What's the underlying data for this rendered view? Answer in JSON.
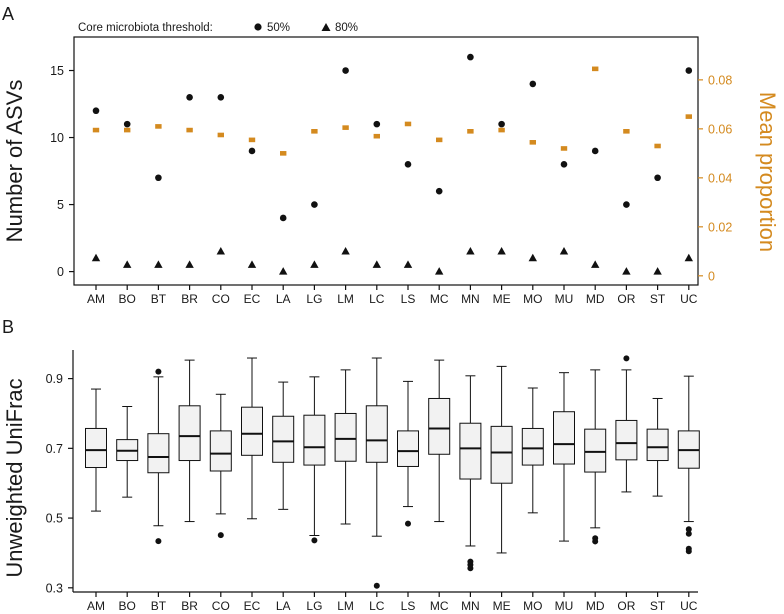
{
  "chart_data": [
    {
      "panel": "A",
      "type": "scatter",
      "legend": {
        "title": "Core microbiota threshold:",
        "entries": [
          {
            "symbol": "circle",
            "label": "50%"
          },
          {
            "symbol": "triangle",
            "label": "80%"
          }
        ]
      },
      "categories": [
        "AM",
        "BO",
        "BT",
        "BR",
        "CO",
        "EC",
        "LA",
        "LG",
        "LM",
        "LC",
        "LS",
        "MC",
        "MN",
        "ME",
        "MO",
        "MU",
        "MD",
        "OR",
        "ST",
        "UC"
      ],
      "ylabel": "Number of ASVs",
      "ylim": [
        -1,
        17.5
      ],
      "yticks": [
        "0",
        "5",
        "10",
        "15"
      ],
      "y2label": "Mean proportion",
      "y2lim": [
        -0.00375,
        0.0975
      ],
      "y2ticks": [
        "0",
        "0.02",
        "0.04",
        "0.06",
        "0.08"
      ],
      "series": [
        {
          "name": "50%",
          "marker": "circle",
          "axis": "left",
          "values": [
            12,
            11,
            7,
            13,
            13,
            9,
            4,
            5,
            15,
            11,
            8,
            6,
            16,
            11,
            14,
            8,
            9,
            5,
            7,
            15
          ]
        },
        {
          "name": "80%",
          "marker": "triangle",
          "axis": "left",
          "values": [
            1,
            0.5,
            0.5,
            0.5,
            1.5,
            0.5,
            0,
            0.5,
            1.5,
            0.5,
            0.5,
            0,
            1.5,
            1.5,
            1,
            1.5,
            0.5,
            0,
            0,
            1
          ]
        },
        {
          "name": "Mean proportion",
          "marker": "square",
          "axis": "right",
          "values": [
            0.0595,
            0.0595,
            0.061,
            0.0595,
            0.0575,
            0.0555,
            0.05,
            0.059,
            0.0605,
            0.057,
            0.062,
            0.0555,
            0.059,
            0.0595,
            0.0545,
            0.052,
            0.0845,
            0.059,
            0.053,
            0.065
          ]
        }
      ],
      "colors": {
        "markers": "#111111",
        "proportion": "#d48a1f",
        "right_axis": "#d48a1f"
      }
    },
    {
      "panel": "B",
      "type": "box",
      "categories": [
        "AM",
        "BO",
        "BT",
        "BR",
        "CO",
        "EC",
        "LA",
        "LG",
        "LM",
        "LC",
        "LS",
        "MC",
        "MN",
        "ME",
        "MO",
        "MU",
        "MD",
        "OR",
        "ST",
        "UC"
      ],
      "ylabel": "Unweighted UniFrac",
      "ylim": [
        0.288,
        0.982
      ],
      "yticks": [
        "0.3",
        "0.5",
        "0.7",
        "0.9"
      ],
      "boxes": [
        {
          "whisker_low": 0.52,
          "q1": 0.645,
          "median": 0.695,
          "q3": 0.757,
          "whisker_high": 0.87,
          "outliers": []
        },
        {
          "whisker_low": 0.56,
          "q1": 0.665,
          "median": 0.693,
          "q3": 0.725,
          "whisker_high": 0.82,
          "outliers": []
        },
        {
          "whisker_low": 0.478,
          "q1": 0.63,
          "median": 0.675,
          "q3": 0.742,
          "whisker_high": 0.905,
          "outliers": [
            0.434,
            0.92
          ]
        },
        {
          "whisker_low": 0.49,
          "q1": 0.665,
          "median": 0.735,
          "q3": 0.822,
          "whisker_high": 0.953,
          "outliers": []
        },
        {
          "whisker_low": 0.512,
          "q1": 0.635,
          "median": 0.685,
          "q3": 0.75,
          "whisker_high": 0.855,
          "outliers": [
            0.451
          ]
        },
        {
          "whisker_low": 0.498,
          "q1": 0.68,
          "median": 0.742,
          "q3": 0.818,
          "whisker_high": 0.959,
          "outliers": []
        },
        {
          "whisker_low": 0.525,
          "q1": 0.66,
          "median": 0.72,
          "q3": 0.792,
          "whisker_high": 0.89,
          "outliers": []
        },
        {
          "whisker_low": 0.45,
          "q1": 0.652,
          "median": 0.703,
          "q3": 0.795,
          "whisker_high": 0.905,
          "outliers": [
            0.436
          ]
        },
        {
          "whisker_low": 0.483,
          "q1": 0.663,
          "median": 0.727,
          "q3": 0.8,
          "whisker_high": 0.925,
          "outliers": []
        },
        {
          "whisker_low": 0.448,
          "q1": 0.66,
          "median": 0.723,
          "q3": 0.822,
          "whisker_high": 0.959,
          "outliers": [
            0.306
          ]
        },
        {
          "whisker_low": 0.533,
          "q1": 0.648,
          "median": 0.692,
          "q3": 0.75,
          "whisker_high": 0.892,
          "outliers": [
            0.484
          ]
        },
        {
          "whisker_low": 0.49,
          "q1": 0.683,
          "median": 0.757,
          "q3": 0.843,
          "whisker_high": 0.953,
          "outliers": []
        },
        {
          "whisker_low": 0.42,
          "q1": 0.612,
          "median": 0.7,
          "q3": 0.772,
          "whisker_high": 0.908,
          "outliers": [
            0.356,
            0.366,
            0.375
          ]
        },
        {
          "whisker_low": 0.4,
          "q1": 0.6,
          "median": 0.688,
          "q3": 0.763,
          "whisker_high": 0.935,
          "outliers": []
        },
        {
          "whisker_low": 0.515,
          "q1": 0.652,
          "median": 0.7,
          "q3": 0.757,
          "whisker_high": 0.873,
          "outliers": []
        },
        {
          "whisker_low": 0.434,
          "q1": 0.655,
          "median": 0.712,
          "q3": 0.805,
          "whisker_high": 0.917,
          "outliers": []
        },
        {
          "whisker_low": 0.472,
          "q1": 0.632,
          "median": 0.69,
          "q3": 0.755,
          "whisker_high": 0.925,
          "outliers": [
            0.433,
            0.442
          ]
        },
        {
          "whisker_low": 0.575,
          "q1": 0.667,
          "median": 0.715,
          "q3": 0.78,
          "whisker_high": 0.925,
          "outliers": [
            0.958
          ]
        },
        {
          "whisker_low": 0.563,
          "q1": 0.665,
          "median": 0.703,
          "q3": 0.755,
          "whisker_high": 0.843,
          "outliers": []
        },
        {
          "whisker_low": 0.49,
          "q1": 0.643,
          "median": 0.695,
          "q3": 0.75,
          "whisker_high": 0.907,
          "outliers": [
            0.405,
            0.412,
            0.455,
            0.468
          ]
        }
      ],
      "colors": {
        "box_fill": "#f2f2f2",
        "stroke": "#111111"
      }
    }
  ]
}
